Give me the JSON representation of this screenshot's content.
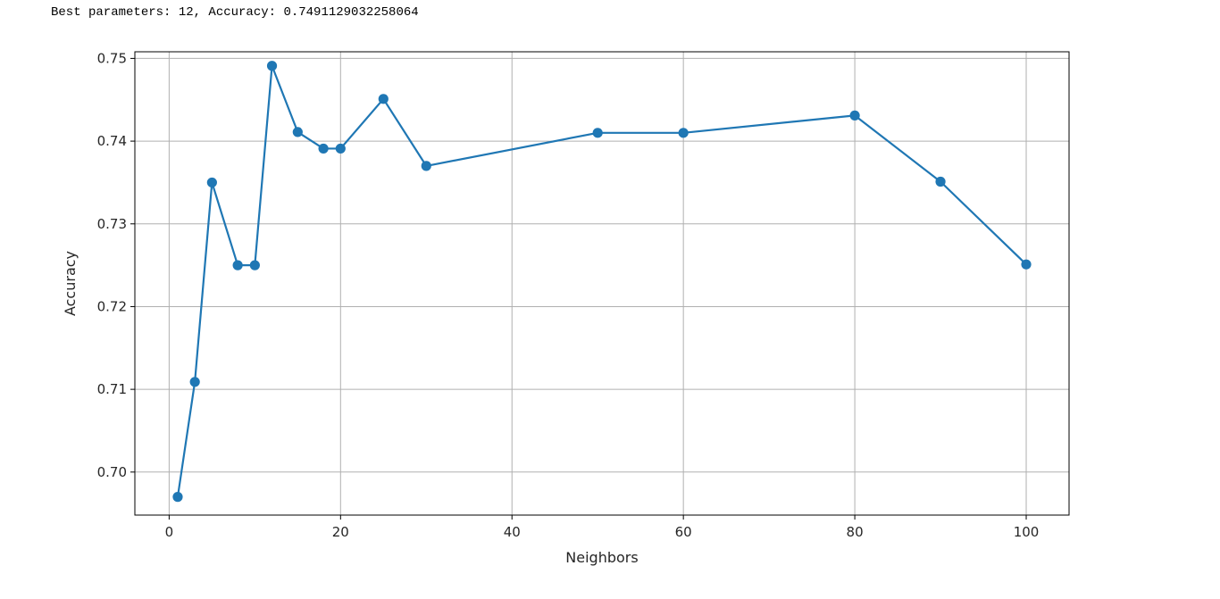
{
  "console": {
    "output_text": "Best parameters: 12, Accuracy: 0.7491129032258064"
  },
  "chart_data": {
    "type": "line",
    "title": "",
    "xlabel": "Neighbors",
    "ylabel": "Accuracy",
    "xlim": [
      -4,
      105
    ],
    "ylim": [
      0.6948,
      0.7508
    ],
    "xticks": [
      0,
      20,
      40,
      60,
      80,
      100
    ],
    "xtick_labels": [
      "0",
      "20",
      "40",
      "60",
      "80",
      "100"
    ],
    "yticks": [
      0.7,
      0.71,
      0.72,
      0.73,
      0.74,
      0.75
    ],
    "ytick_labels": [
      "0.70",
      "0.71",
      "0.72",
      "0.73",
      "0.74",
      "0.75"
    ],
    "grid": true,
    "marker": "circle",
    "series": [
      {
        "color": "#1f77b4",
        "x": [
          1,
          3,
          5,
          8,
          10,
          12,
          15,
          18,
          20,
          25,
          30,
          50,
          60,
          80,
          90,
          100
        ],
        "y": [
          0.697,
          0.7109,
          0.735,
          0.725,
          0.725,
          0.7491,
          0.7411,
          0.7391,
          0.7391,
          0.7451,
          0.737,
          0.741,
          0.741,
          0.7431,
          0.7351,
          0.7251
        ]
      }
    ]
  }
}
